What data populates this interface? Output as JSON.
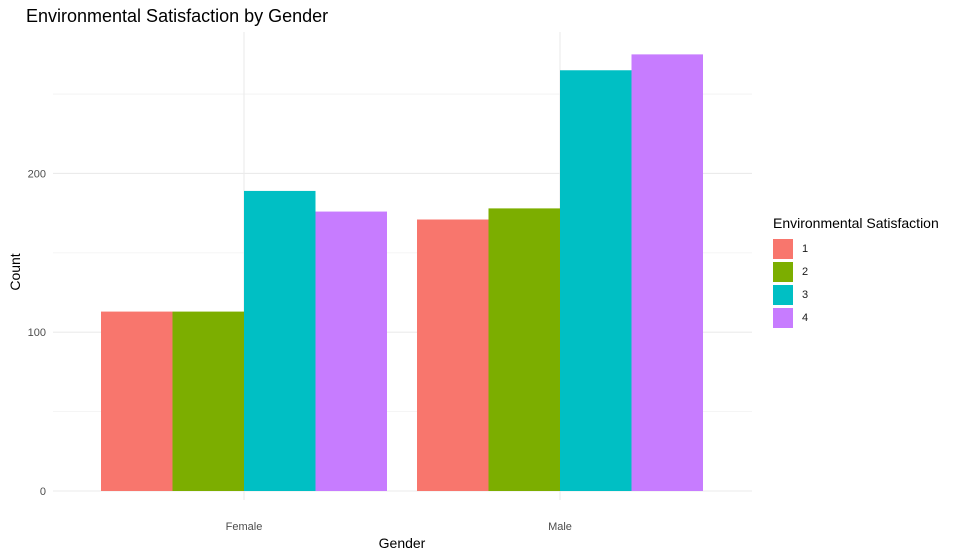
{
  "chart_data": {
    "type": "bar",
    "title": "Environmental Satisfaction by Gender",
    "xlabel": "Gender",
    "ylabel": "Count",
    "categories": [
      "Female",
      "Male"
    ],
    "series": [
      {
        "name": "1",
        "color": "#F8766D",
        "values": [
          113,
          171
        ]
      },
      {
        "name": "2",
        "color": "#7CAE00",
        "values": [
          113,
          178
        ]
      },
      {
        "name": "3",
        "color": "#00BFC4",
        "values": [
          189,
          265
        ]
      },
      {
        "name": "4",
        "color": "#C77CFF",
        "values": [
          176,
          275
        ]
      }
    ],
    "yticks": [
      0,
      100,
      200
    ],
    "ylim": [
      0,
      290
    ],
    "grid": true,
    "legend": {
      "title": "Environmental Satisfaction",
      "position": "right"
    }
  }
}
